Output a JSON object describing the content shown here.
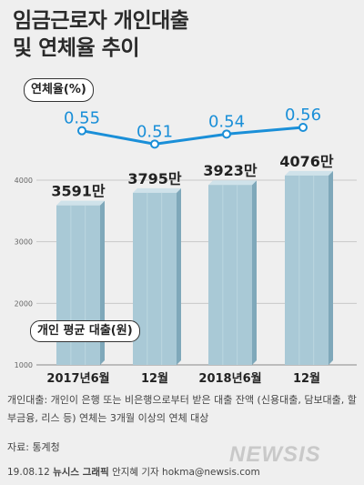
{
  "title": "임금근로자 개인대출\n및 연체율 추이",
  "rate_label": "연체율(%)",
  "loan_label": "개인 평균 대출(원)",
  "footnote": "개인대출: 개인이 은행 또는 비은행으로부터 받은 대출 잔액 (신용대출, 담보대출, 할부금융, 리스 등) 연체는 3개월 이상의 연체 대상",
  "source": "자료: 통계청",
  "credit": {
    "date": "19.08.12",
    "agency": "뉴시스 그래픽",
    "author": "안지혜 기자 hokma@newsis.com"
  },
  "watermark": "NEWSIS",
  "colors": {
    "bar_face": "#a9c9d6",
    "bar_side": "#7fa8ba",
    "bar_top": "#cfe2ea",
    "line": "#1a8fd8",
    "rate_text": "#1a8fd8",
    "grid": "#c8c8c8"
  },
  "chart_data": [
    {
      "type": "bar",
      "categories": [
        "2017년6월",
        "12월",
        "2018년6월",
        "12월"
      ],
      "values": [
        3591,
        3795,
        3923,
        4076
      ],
      "value_labels": [
        "3591만",
        "3795만",
        "3923만",
        "4076만"
      ],
      "ylim": [
        1000,
        4000
      ],
      "yticks": [
        "1000",
        "2000",
        "3000",
        "4000"
      ],
      "ylabel": "개인 평균 대출(원)",
      "grid": true
    },
    {
      "type": "line",
      "categories": [
        "2017년6월",
        "12월",
        "2018년6월",
        "12월"
      ],
      "values": [
        0.55,
        0.51,
        0.54,
        0.56
      ],
      "value_labels": [
        "0.55",
        "0.51",
        "0.54",
        "0.56"
      ],
      "ylabel": "연체율(%)"
    }
  ]
}
